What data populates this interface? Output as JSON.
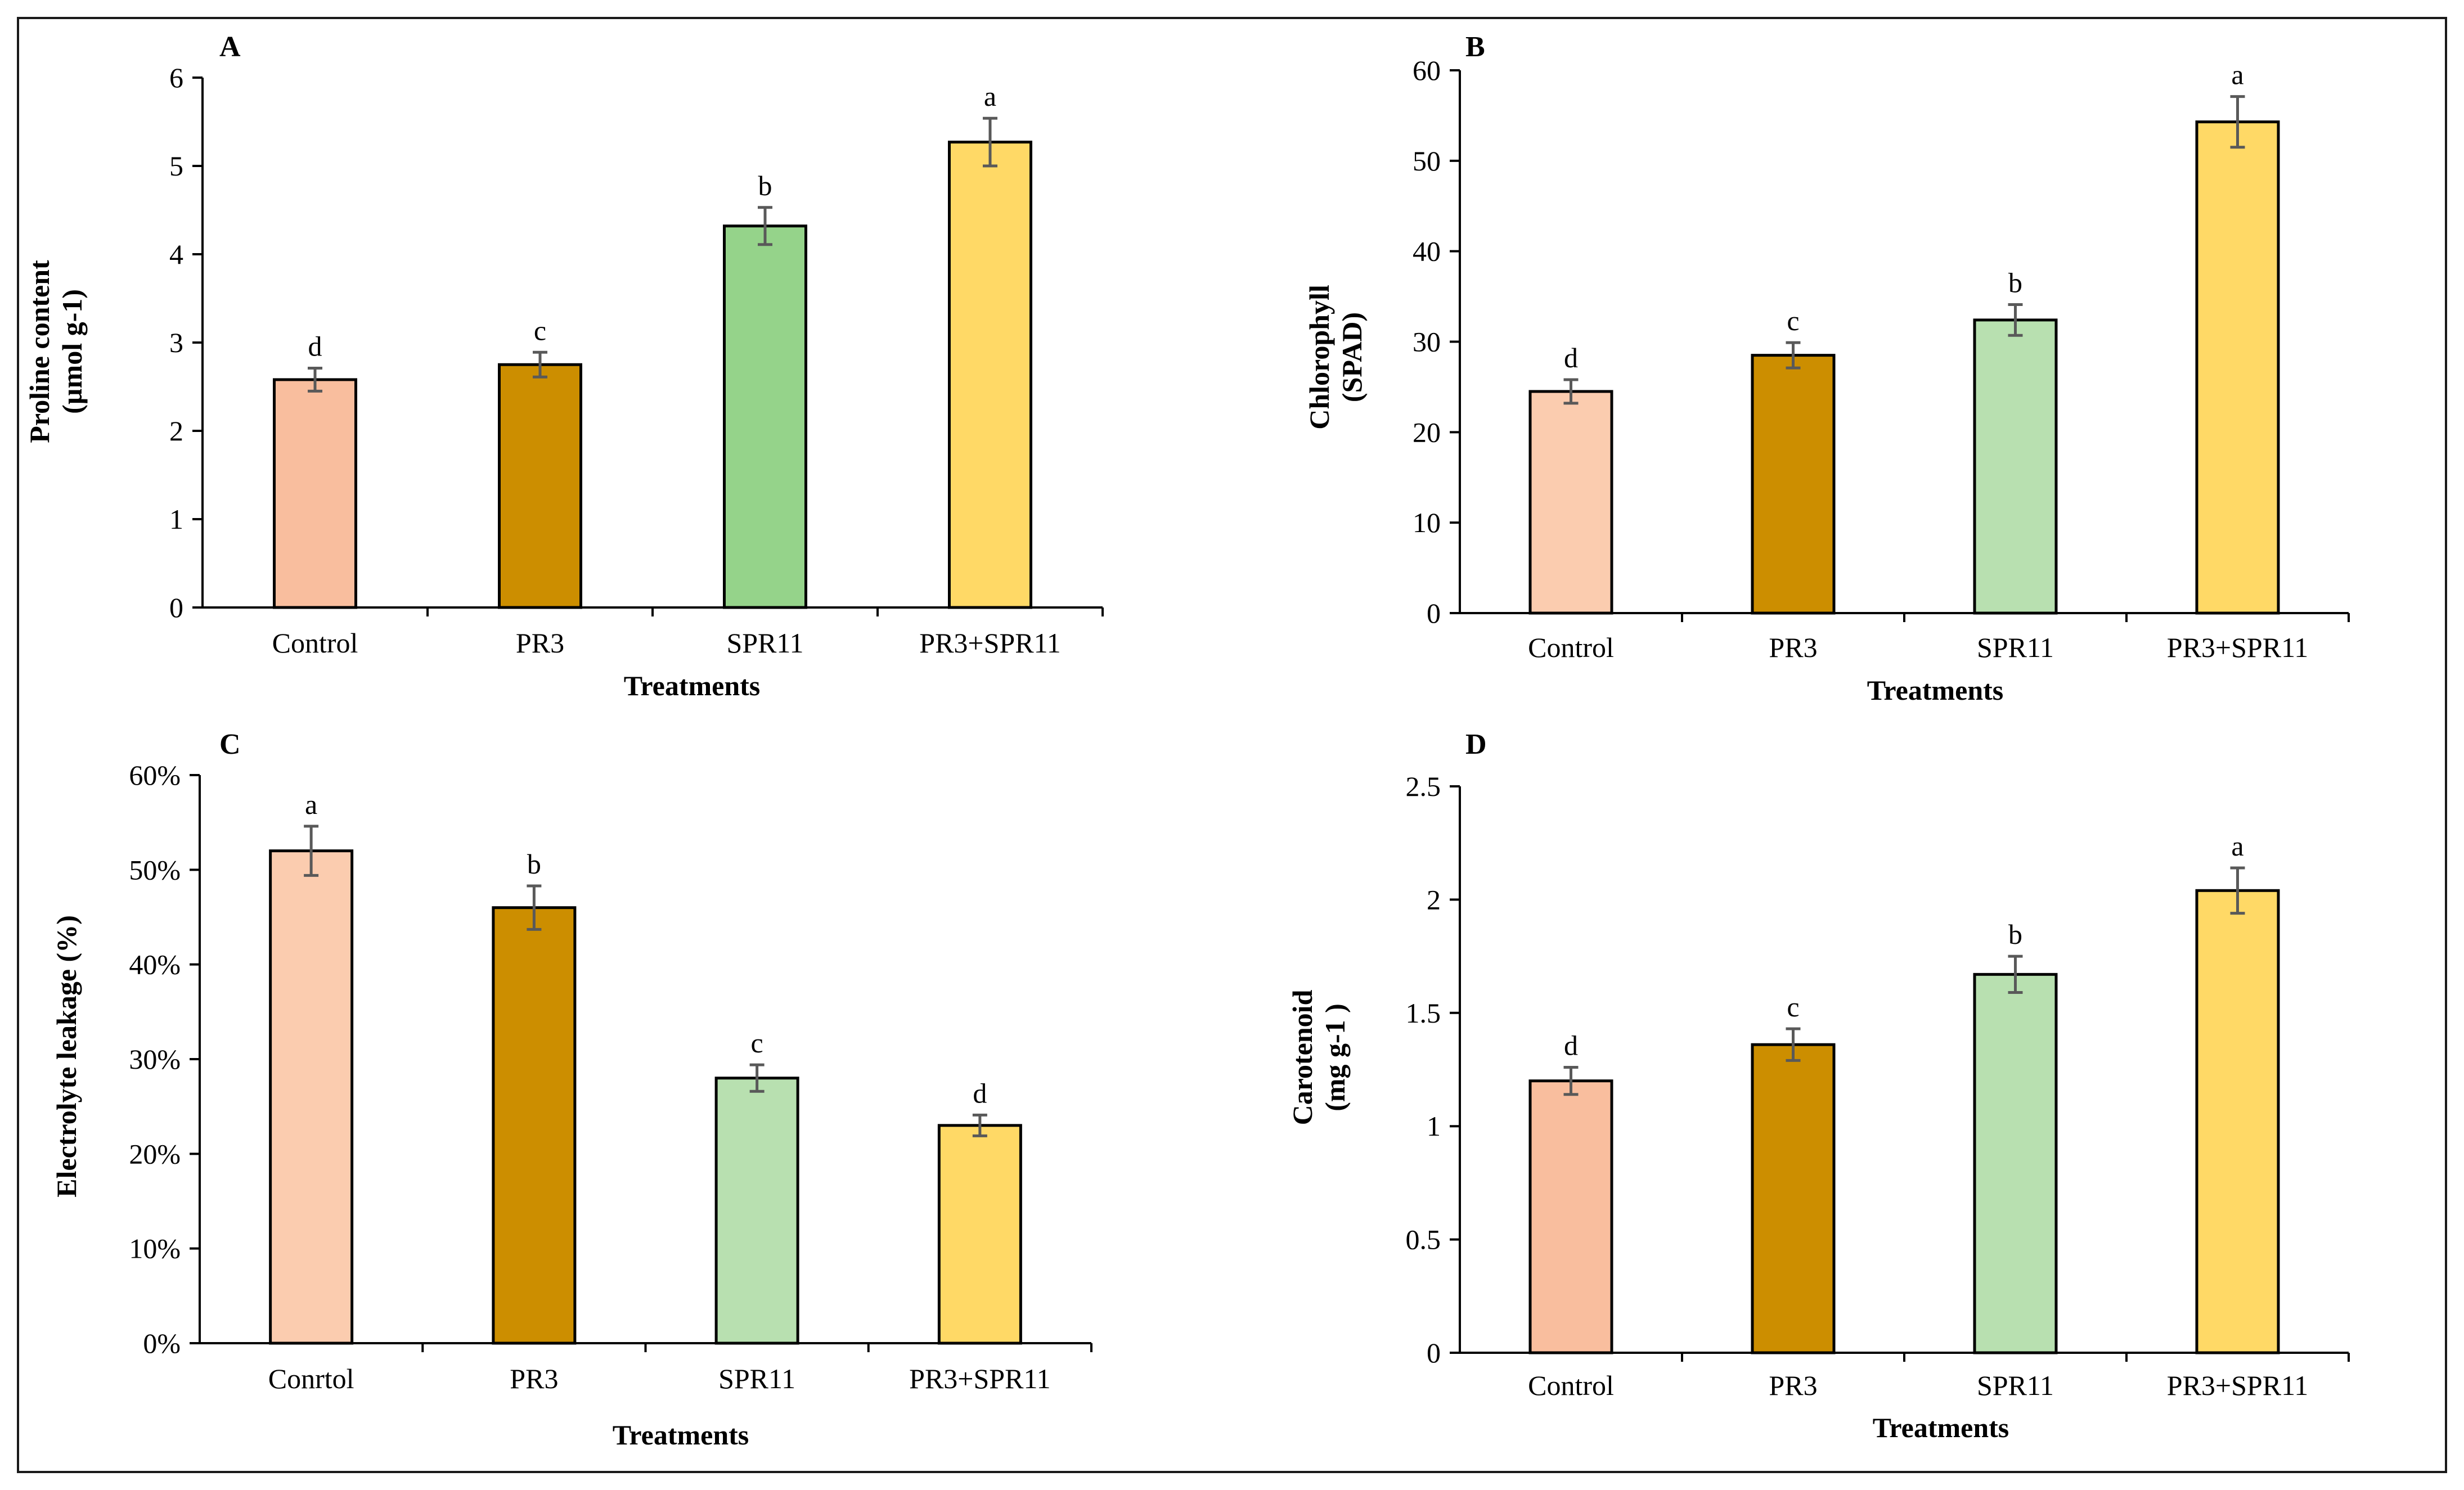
{
  "chart_data": [
    {
      "panel": "A",
      "type": "bar",
      "categories": [
        "Control",
        "PR3",
        "SPR11",
        "PR3+SPR11"
      ],
      "values": [
        2.58,
        2.75,
        4.32,
        5.27
      ],
      "errors": [
        0.13,
        0.14,
        0.21,
        0.27
      ],
      "significance": [
        "d",
        "c",
        "b",
        "a"
      ],
      "bar_colors": [
        "#F9BE9E",
        "#CC8E00",
        "#95D38A",
        "#FFD966"
      ],
      "xlabel": "Treatments",
      "ylabel": [
        "Proline content",
        "(µmol g-1)"
      ],
      "ylim": [
        0,
        6
      ],
      "yticks": [
        0,
        1,
        2,
        3,
        4,
        5,
        6
      ],
      "ytick_labels": [
        "0",
        "1",
        "2",
        "3",
        "4",
        "5",
        "6"
      ],
      "grid": false
    },
    {
      "panel": "B",
      "type": "bar",
      "categories": [
        "Control",
        "PR3",
        "SPR11",
        "PR3+SPR11"
      ],
      "values": [
        24.5,
        28.5,
        32.4,
        54.3
      ],
      "errors": [
        1.3,
        1.4,
        1.7,
        2.8
      ],
      "significance": [
        "d",
        "c",
        "b",
        "a"
      ],
      "bar_colors": [
        "#FBCCAF",
        "#CC8E00",
        "#B8E0B0",
        "#FFD966"
      ],
      "xlabel": "Treatments",
      "ylabel": [
        "Chlorophyll",
        "(SPAD)"
      ],
      "ylim": [
        0,
        60
      ],
      "yticks": [
        0,
        10,
        20,
        30,
        40,
        50,
        60
      ],
      "ytick_labels": [
        "0",
        "10",
        "20",
        "30",
        "40",
        "50",
        "60"
      ],
      "grid": false
    },
    {
      "panel": "C",
      "type": "bar",
      "categories": [
        "Conrtol",
        "PR3",
        "SPR11",
        "PR3+SPR11"
      ],
      "values": [
        0.52,
        0.46,
        0.28,
        0.23
      ],
      "errors": [
        0.026,
        0.023,
        0.014,
        0.011
      ],
      "significance": [
        "a",
        "b",
        "c",
        "d"
      ],
      "bar_colors": [
        "#FBCCAF",
        "#CC8E00",
        "#B8E0B0",
        "#FFD966"
      ],
      "xlabel": "Treatments",
      "ylabel": [
        "Electrolyte leakage (%)"
      ],
      "ylim": [
        0,
        0.6
      ],
      "yticks": [
        0,
        0.1,
        0.2,
        0.3,
        0.4,
        0.5,
        0.6
      ],
      "ytick_labels": [
        "0%",
        "10%",
        "20%",
        "30%",
        "40%",
        "50%",
        "60%"
      ],
      "grid": false
    },
    {
      "panel": "D",
      "type": "bar",
      "categories": [
        "Control",
        "PR3",
        "SPR11",
        "PR3+SPR11"
      ],
      "values": [
        1.2,
        1.36,
        1.67,
        2.04
      ],
      "errors": [
        0.06,
        0.07,
        0.08,
        0.1
      ],
      "significance": [
        "d",
        "c",
        "b",
        "a"
      ],
      "bar_colors": [
        "#F9BE9E",
        "#CC8E00",
        "#B8E0B0",
        "#FFD966"
      ],
      "xlabel": "Treatments",
      "ylabel": [
        "Carotenoid",
        "(mg g-1 )"
      ],
      "ylim": [
        0,
        2.5
      ],
      "yticks": [
        0,
        0.5,
        1,
        1.5,
        2,
        2.5
      ],
      "ytick_labels": [
        "0",
        "0.5",
        "1",
        "1.5",
        "2",
        "2.5"
      ],
      "grid": false
    }
  ]
}
